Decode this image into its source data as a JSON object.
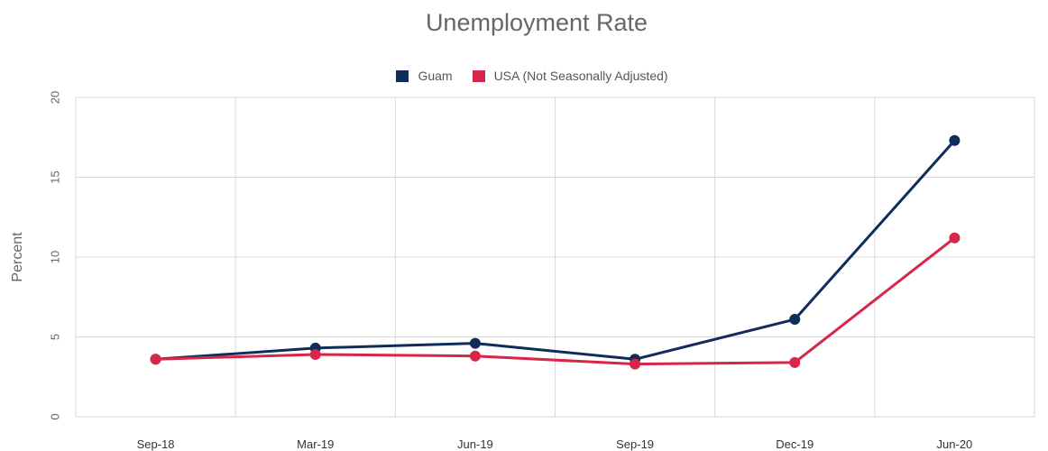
{
  "chart_data": {
    "type": "line",
    "title": "Unemployment Rate",
    "ylabel": "Percent",
    "xlabel": "",
    "categories": [
      "Sep-18",
      "Mar-19",
      "Jun-19",
      "Sep-19",
      "Dec-19",
      "Jun-20"
    ],
    "ylim": [
      0,
      20
    ],
    "yticks": [
      {
        "value": 0,
        "label": "0"
      },
      {
        "value": 5,
        "label": "5"
      },
      {
        "value": 10,
        "label": "10"
      },
      {
        "value": 15,
        "label": "15"
      },
      {
        "value": 20,
        "label": "20"
      }
    ],
    "grid": true,
    "legend_position": "top-center",
    "series": [
      {
        "name": "Guam",
        "color": "#0f2d5a",
        "values": [
          3.6,
          4.3,
          4.6,
          3.6,
          6.1,
          17.3
        ]
      },
      {
        "name": "USA (Not Seasonally Adjusted)",
        "color": "#d6264a",
        "values": [
          3.6,
          3.9,
          3.8,
          3.3,
          3.4,
          11.2
        ]
      }
    ]
  }
}
